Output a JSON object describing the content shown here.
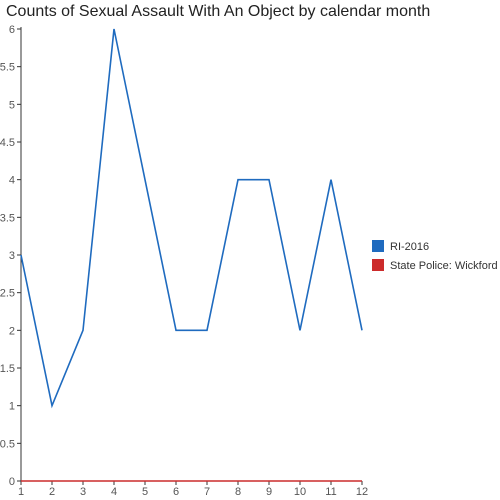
{
  "chart_data": {
    "type": "line",
    "title": "Counts of Sexual Assault With An Object by calendar month",
    "xlabel": "",
    "ylabel": "",
    "x": [
      1,
      2,
      3,
      4,
      5,
      6,
      7,
      8,
      9,
      10,
      11,
      12
    ],
    "xlim": [
      1,
      12
    ],
    "ylim": [
      0,
      6
    ],
    "y_ticks": [
      "0",
      "0.5",
      "1",
      "1.5",
      "2",
      "2.5",
      "3",
      "3.5",
      "4",
      "4.5",
      "5",
      "5.5",
      "6"
    ],
    "x_ticks": [
      "1",
      "2",
      "3",
      "4",
      "5",
      "6",
      "7",
      "8",
      "9",
      "10",
      "11",
      "12"
    ],
    "grid": false,
    "legend_position": "right",
    "series": [
      {
        "name": "RI-2016",
        "color": "#1f6bbf",
        "values": [
          3,
          1,
          2,
          6,
          4,
          2,
          2,
          4,
          4,
          2,
          4,
          2
        ]
      },
      {
        "name": "State Police: Wickford",
        "color": "#cc2b2b",
        "values": [
          0,
          0,
          0,
          0,
          0,
          0,
          0,
          0,
          0,
          0,
          0,
          0
        ]
      }
    ]
  }
}
